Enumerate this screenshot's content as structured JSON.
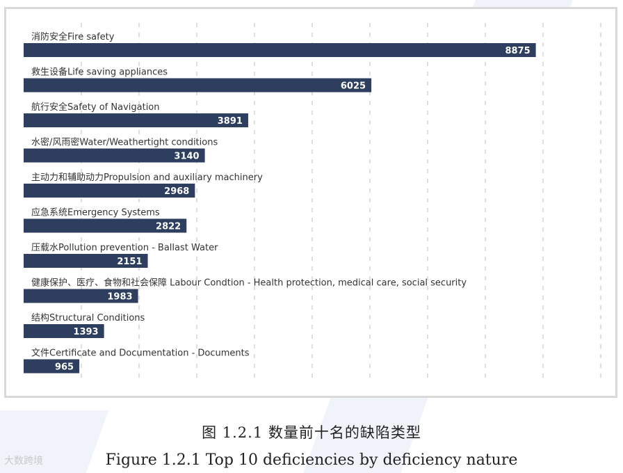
{
  "chart_data": {
    "type": "bar",
    "orientation": "horizontal",
    "categories": [
      "消防安全Fire safety",
      "救生设备Life saving appliances",
      "航行安全Safety of Navigation",
      "水密/风雨密Water/Weathertight conditions",
      "主动力和辅助动力Propulsion and auxiliary machinery",
      "应急系统Emergency Systems",
      "压载水Pollution prevention - Ballast Water",
      "健康保护、医疗、食物和社会保障 Labour Condtion - Health protection, medical care, social security",
      "结构Structural Conditions",
      "文件Certificate and Documentation - Documents"
    ],
    "values": [
      8875,
      6025,
      3891,
      3140,
      2968,
      2822,
      2151,
      1983,
      1393,
      965
    ],
    "value_labels": [
      "8875",
      "6025",
      "3891",
      "3140",
      "2968",
      "2822",
      "2151",
      "1983",
      "1393",
      "965"
    ],
    "xlim": [
      0,
      10000
    ],
    "grid": true,
    "bar_color": "#2e3e5e"
  },
  "captions": {
    "chinese": "图 1.2.1 数量前十名的缺陷类型",
    "english": "Figure 1.2.1 Top 10 deficiencies by deficiency nature"
  },
  "watermark": "大数跨境"
}
